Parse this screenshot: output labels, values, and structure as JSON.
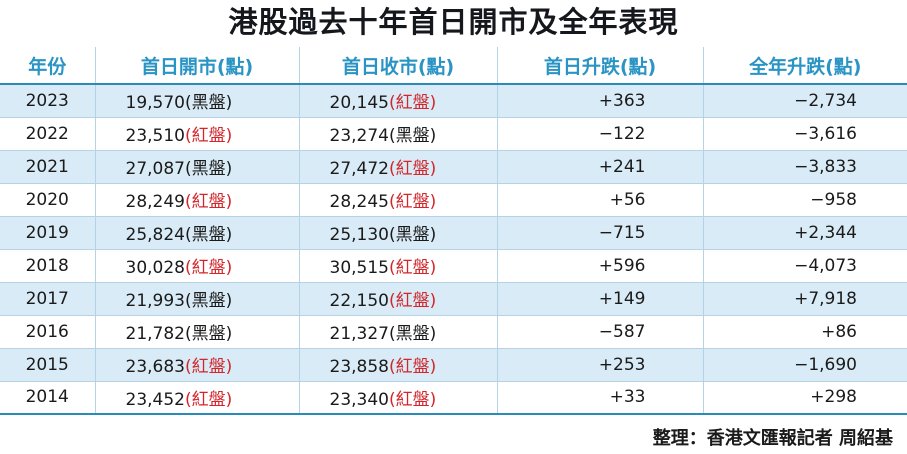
{
  "title": "港股過去十年首日開市及全年表現",
  "colors": {
    "header_text": "#2a94c4",
    "stripe": "#d9ebf6",
    "red_tag": "#d2262b",
    "black_tag": "#1a1a1a"
  },
  "chart_data": {
    "type": "table",
    "title": "港股過去十年首日開市及全年表現",
    "columns": [
      "年份",
      "首日開市(點)",
      "首日收市(點)",
      "首日升跌(點)",
      "全年升跌(點)"
    ],
    "rows": [
      {
        "year": "2023",
        "open": "19,570",
        "open_tag": "(黑盤)",
        "open_color": "black",
        "close": "20,145",
        "close_tag": "(紅盤)",
        "close_color": "red",
        "day_change": "+363",
        "year_change": "−2,734"
      },
      {
        "year": "2022",
        "open": "23,510",
        "open_tag": "(紅盤)",
        "open_color": "red",
        "close": "23,274",
        "close_tag": "(黑盤)",
        "close_color": "black",
        "day_change": "−122",
        "year_change": "−3,616"
      },
      {
        "year": "2021",
        "open": "27,087",
        "open_tag": "(黑盤)",
        "open_color": "black",
        "close": "27,472",
        "close_tag": "(紅盤)",
        "close_color": "red",
        "day_change": "+241",
        "year_change": "−3,833"
      },
      {
        "year": "2020",
        "open": "28,249",
        "open_tag": "(紅盤)",
        "open_color": "red",
        "close": "28,245",
        "close_tag": "(紅盤)",
        "close_color": "red",
        "day_change": "+56",
        "year_change": "−958"
      },
      {
        "year": "2019",
        "open": "25,824",
        "open_tag": "(黑盤)",
        "open_color": "black",
        "close": "25,130",
        "close_tag": "(黑盤)",
        "close_color": "black",
        "day_change": "−715",
        "year_change": "+2,344"
      },
      {
        "year": "2018",
        "open": "30,028",
        "open_tag": "(紅盤)",
        "open_color": "red",
        "close": "30,515",
        "close_tag": "(紅盤)",
        "close_color": "red",
        "day_change": "+596",
        "year_change": "−4,073"
      },
      {
        "year": "2017",
        "open": "21,993",
        "open_tag": "(黑盤)",
        "open_color": "black",
        "close": "22,150",
        "close_tag": "(紅盤)",
        "close_color": "red",
        "day_change": "+149",
        "year_change": "+7,918"
      },
      {
        "year": "2016",
        "open": "21,782",
        "open_tag": "(黑盤)",
        "open_color": "black",
        "close": "21,327",
        "close_tag": "(黑盤)",
        "close_color": "black",
        "day_change": "−587",
        "year_change": "+86"
      },
      {
        "year": "2015",
        "open": "23,683",
        "open_tag": "(紅盤)",
        "open_color": "red",
        "close": "23,858",
        "close_tag": "(紅盤)",
        "close_color": "red",
        "day_change": "+253",
        "year_change": "−1,690"
      },
      {
        "year": "2014",
        "open": "23,452",
        "open_tag": "(紅盤)",
        "open_color": "red",
        "close": "23,340",
        "close_tag": "(紅盤)",
        "close_color": "red",
        "day_change": "+33",
        "year_change": "+298"
      }
    ]
  },
  "credit": "整理：香港文匯報記者 周紹基"
}
